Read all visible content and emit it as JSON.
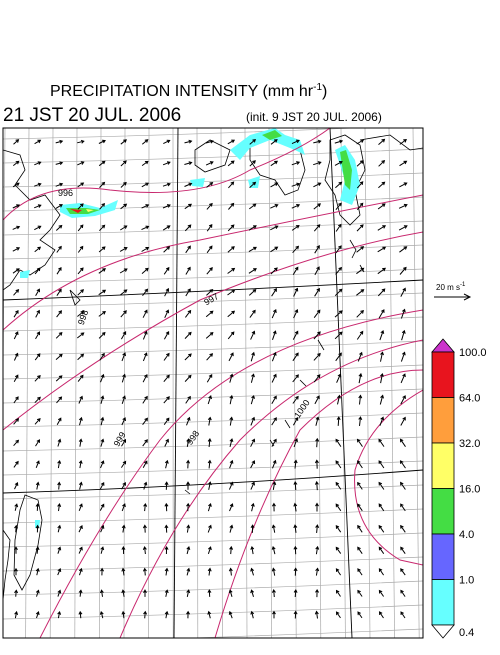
{
  "header": {
    "title": "PRECIPITATION INTENSITY (mm hr",
    "title_exponent": "-1",
    "title_close": ")",
    "valid_time": "21 JST 20 JUL. 2006",
    "init_time": "(init. 9 JST 20 JUL. 2006)"
  },
  "vector_scale": {
    "label": "20 m s",
    "exponent": "-1"
  },
  "colorbar": {
    "labels": [
      "100.0",
      "64.0",
      "32.0",
      "16.0",
      "4.0",
      "1.0",
      "0.4"
    ],
    "colors": [
      "#cc33cc",
      "#e8141e",
      "#ff9e3c",
      "#ffff66",
      "#44dd44",
      "#6666ff",
      "#66ffff",
      "#ffffff"
    ]
  },
  "contour_labels": [
    "996",
    "998",
    "997",
    "999",
    "998",
    "1000"
  ]
}
